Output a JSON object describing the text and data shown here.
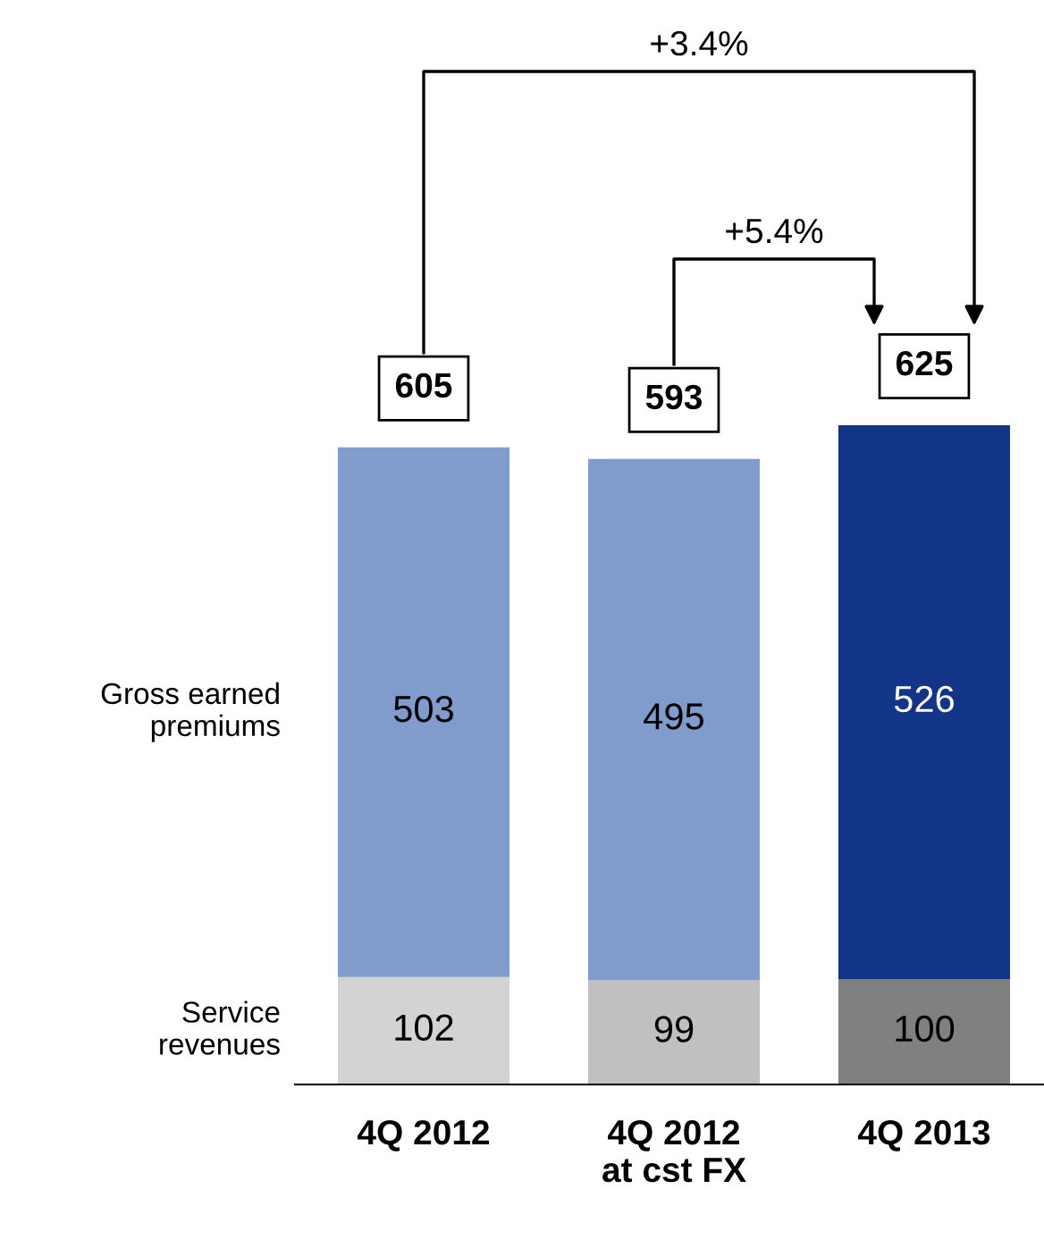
{
  "chart_data": {
    "type": "bar",
    "stacked": true,
    "data_labels": true,
    "categories": [
      "4Q 2012",
      "4Q 2012\nat cst FX",
      "4Q 2013"
    ],
    "series": [
      {
        "name": "Service\nrevenues",
        "colors": [
          "#d3d3d3",
          "#c0c0c0",
          "#808080"
        ],
        "values": [
          102,
          99,
          100
        ]
      },
      {
        "name": "Gross earned\npremiums",
        "colors": [
          "#7f9ccc",
          "#7f9ccc",
          "#12358a"
        ],
        "values": [
          503,
          495,
          526
        ]
      }
    ],
    "totals": [
      "605",
      "593",
      "625"
    ],
    "annotations": [
      "+3.4%",
      "+5.4%"
    ]
  }
}
